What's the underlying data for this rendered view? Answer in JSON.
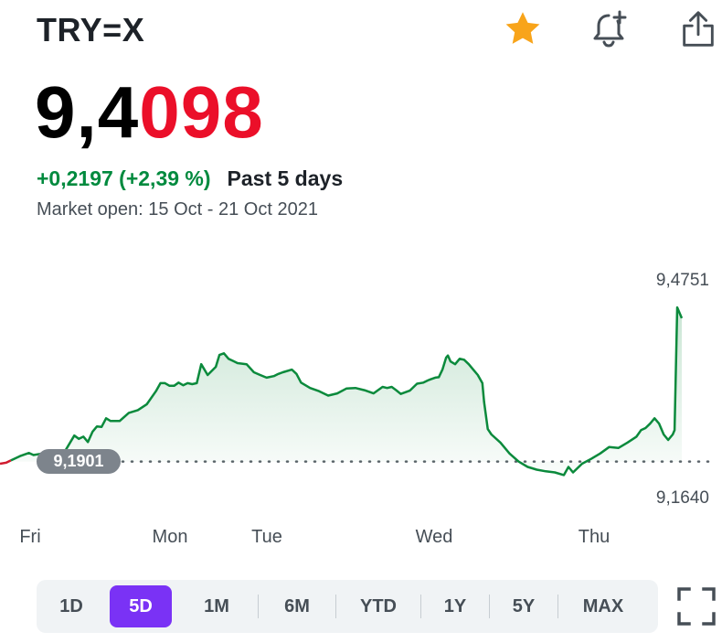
{
  "header": {
    "symbol": "TRY=X",
    "icons": {
      "favorite": "star-icon",
      "alert": "bell-plus-icon",
      "share": "share-icon"
    },
    "colors": {
      "star": "#f8a41a"
    }
  },
  "quote": {
    "price_main": "9,4",
    "price_highlight": "098",
    "change": "+0,2197 (+2,39 %)",
    "period": "Past 5 days",
    "market_status": "Market open: 15 Oct - 21 Oct 2021",
    "colors": {
      "up": "#008a3e",
      "highlight": "#eb0f29"
    }
  },
  "chart_data": {
    "type": "area",
    "y_high_label": "9,4751",
    "y_low_label": "9,1640",
    "previous_close_label": "9,1901",
    "previous_close": 9.1901,
    "ylim": [
      9.164,
      9.4751
    ],
    "x_labels": [
      "Fri",
      "Mon",
      "Tue",
      "Wed",
      "Thu"
    ],
    "x_label_positions": [
      0,
      1,
      2,
      3,
      4
    ],
    "points": [
      [
        -0.02,
        9.186
      ],
      [
        0.05,
        9.188
      ],
      [
        0.1,
        9.192
      ],
      [
        0.2,
        9.2
      ],
      [
        0.3,
        9.206
      ],
      [
        0.35,
        9.202
      ],
      [
        0.42,
        9.204
      ],
      [
        0.55,
        9.205
      ],
      [
        0.62,
        9.2
      ],
      [
        0.7,
        9.21
      ],
      [
        0.8,
        9.238
      ],
      [
        0.85,
        9.232
      ],
      [
        0.9,
        9.236
      ],
      [
        0.95,
        9.226
      ],
      [
        1.0,
        9.245
      ],
      [
        1.05,
        9.255
      ],
      [
        1.1,
        9.254
      ],
      [
        1.15,
        9.27
      ],
      [
        1.2,
        9.265
      ],
      [
        1.3,
        9.265
      ],
      [
        1.4,
        9.28
      ],
      [
        1.5,
        9.285
      ],
      [
        1.6,
        9.296
      ],
      [
        1.7,
        9.32
      ],
      [
        1.75,
        9.335
      ],
      [
        1.8,
        9.335
      ],
      [
        1.85,
        9.33
      ],
      [
        1.9,
        9.33
      ],
      [
        1.95,
        9.336
      ],
      [
        2.0,
        9.331
      ],
      [
        2.05,
        9.335
      ],
      [
        2.1,
        9.333
      ],
      [
        2.15,
        9.335
      ],
      [
        2.2,
        9.37
      ],
      [
        2.27,
        9.35
      ],
      [
        2.36,
        9.365
      ],
      [
        2.4,
        9.387
      ],
      [
        2.45,
        9.39
      ],
      [
        2.5,
        9.38
      ],
      [
        2.6,
        9.372
      ],
      [
        2.7,
        9.37
      ],
      [
        2.78,
        9.355
      ],
      [
        2.85,
        9.35
      ],
      [
        2.92,
        9.345
      ],
      [
        3.0,
        9.348
      ],
      [
        3.05,
        9.352
      ],
      [
        3.1,
        9.355
      ],
      [
        3.2,
        9.36
      ],
      [
        3.25,
        9.352
      ],
      [
        3.3,
        9.336
      ],
      [
        3.4,
        9.326
      ],
      [
        3.5,
        9.32
      ],
      [
        3.6,
        9.312
      ],
      [
        3.7,
        9.316
      ],
      [
        3.8,
        9.325
      ],
      [
        3.9,
        9.326
      ],
      [
        4.0,
        9.322
      ],
      [
        4.1,
        9.316
      ],
      [
        4.2,
        9.328
      ],
      [
        4.25,
        9.326
      ],
      [
        4.3,
        9.328
      ],
      [
        4.35,
        9.322
      ],
      [
        4.4,
        9.315
      ],
      [
        4.5,
        9.321
      ],
      [
        4.58,
        9.334
      ],
      [
        4.65,
        9.336
      ],
      [
        4.7,
        9.34
      ],
      [
        4.73,
        9.342
      ],
      [
        4.78,
        9.345
      ],
      [
        4.82,
        9.346
      ],
      [
        4.86,
        9.36
      ],
      [
        4.9,
        9.382
      ],
      [
        4.92,
        9.386
      ],
      [
        4.95,
        9.375
      ],
      [
        5.0,
        9.37
      ],
      [
        5.05,
        9.38
      ],
      [
        5.1,
        9.378
      ],
      [
        5.15,
        9.37
      ],
      [
        5.2,
        9.36
      ],
      [
        5.25,
        9.35
      ],
      [
        5.3,
        9.335
      ],
      [
        5.32,
        9.3
      ],
      [
        5.36,
        9.25
      ],
      [
        5.4,
        9.24
      ],
      [
        5.5,
        9.225
      ],
      [
        5.6,
        9.205
      ],
      [
        5.7,
        9.19
      ],
      [
        5.8,
        9.18
      ],
      [
        5.9,
        9.175
      ],
      [
        6.0,
        9.172
      ],
      [
        6.1,
        9.17
      ],
      [
        6.2,
        9.165
      ],
      [
        6.25,
        9.18
      ],
      [
        6.3,
        9.17
      ],
      [
        6.4,
        9.186
      ],
      [
        6.5,
        9.195
      ],
      [
        6.6,
        9.205
      ],
      [
        6.7,
        9.217
      ],
      [
        6.8,
        9.215
      ],
      [
        6.9,
        9.225
      ],
      [
        7.0,
        9.236
      ],
      [
        7.05,
        9.248
      ],
      [
        7.1,
        9.252
      ],
      [
        7.15,
        9.26
      ],
      [
        7.2,
        9.27
      ],
      [
        7.25,
        9.26
      ],
      [
        7.3,
        9.24
      ],
      [
        7.35,
        9.23
      ],
      [
        7.4,
        9.24
      ],
      [
        7.42,
        9.248
      ],
      [
        7.45,
        9.475
      ],
      [
        7.5,
        9.455
      ]
    ],
    "colors": {
      "line": "#0b8a3c",
      "area": "#0b8a3c",
      "prev_segment": "#d01b2e"
    }
  },
  "range_selector": {
    "items": [
      "1D",
      "5D",
      "1M",
      "6M",
      "YTD",
      "1Y",
      "5Y",
      "MAX"
    ],
    "active": "5D",
    "active_color": "#7a32f5"
  },
  "fullscreen_icon": "fullscreen-icon"
}
